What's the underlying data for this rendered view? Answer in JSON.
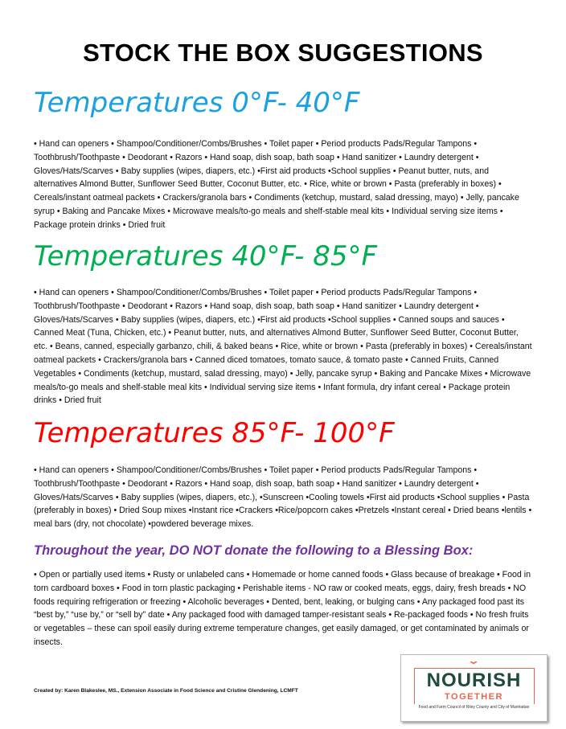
{
  "title": "STOCK THE BOX SUGGESTIONS",
  "colors": {
    "cold": "#1ba1e2",
    "mild": "#00b050",
    "hot": "#ff0000",
    "warning": "#7030a0"
  },
  "sections": [
    {
      "heading": "Temperatures 0°F- 40°F",
      "items": "• Hand can openers • Shampoo/Conditioner/Combs/Brushes • Toilet paper • Period products Pads/Regular Tampons • Toothbrush/Toothpaste • Deodorant • Razors • Hand soap, dish soap, bath soap • Hand sanitizer • Laundry detergent • Gloves/Hats/Scarves • Baby supplies (wipes, diapers, etc.) •First aid products •School supplies  • Peanut butter, nuts, and alternatives  Almond Butter, Sunflower Seed Butter, Coconut Butter, etc. • Rice, white or brown • Pasta (preferably in boxes) • Cereals/instant oatmeal packets • Crackers/granola bars • Condiments (ketchup, mustard, salad dressing, mayo) • Jelly, pancake syrup • Baking and Pancake Mixes • Microwave meals/to-go meals and shelf-stable meal kits • Individual serving size items • Package protein drinks • Dried fruit"
    },
    {
      "heading": "Temperatures 40°F- 85°F",
      "items": "• Hand can openers • Shampoo/Conditioner/Combs/Brushes • Toilet paper • Period products Pads/Regular Tampons • Toothbrush/Toothpaste • Deodorant • Razors • Hand soap, dish soap, bath soap • Hand sanitizer • Laundry detergent • Gloves/Hats/Scarves • Baby supplies (wipes, diapers, etc.) •First aid products •School supplies • Canned soups and sauces • Canned Meat (Tuna, Chicken, etc.) • Peanut butter, nuts, and alternatives  Almond Butter, Sunflower Seed Butter, Coconut Butter, etc. • Beans, canned, especially garbanzo, chili, & baked beans • Rice, white or brown • Pasta (preferably in boxes) • Cereals/instant oatmeal packets • Crackers/granola bars • Canned diced tomatoes, tomato sauce, & tomato paste • Canned Fruits, Canned Vegetables  • Condiments (ketchup, mustard, salad dressing, mayo) • Jelly, pancake syrup • Baking and Pancake Mixes • Microwave meals/to-go meals and shelf-stable meal kits • Individual serving size items • Infant formula, dry infant cereal • Package protein drinks • Dried fruit"
    },
    {
      "heading": "Temperatures 85°F- 100°F",
      "items": "• Hand can openers • Shampoo/Conditioner/Combs/Brushes • Toilet paper • Period products Pads/Regular Tampons • Toothbrush/Toothpaste • Deodorant • Razors • Hand soap, dish soap, bath soap • Hand sanitizer • Laundry detergent • Gloves/Hats/Scarves • Baby supplies (wipes, diapers, etc.), •Sunscreen •Cooling towels •First aid products •School supplies • Pasta (preferably in boxes) • Dried Soup mixes •Instant rice •Crackers •Rice/popcorn cakes •Pretzels •Instant cereal • Dried beans •lentils • meal bars (dry, not chocolate) •powdered beverage mixes."
    }
  ],
  "donot": {
    "heading": "Throughout the year, DO NOT donate the following to a Blessing Box:",
    "items": "• Open or partially used items • Rusty or unlabeled cans • Homemade or home canned foods • Glass because of breakage • Food in torn cardboard boxes • Food in torn plastic packaging • Perishable items - NO raw or cooked meats, eggs, dairy, fresh breads • NO foods requiring refrigeration or freezing • Alcoholic beverages • Dented, bent, leaking, or bulging cans • Any packaged food past its “best by,” “use by,” or “sell by” date • Any packaged food with damaged tamper-resistant seals • Re-packaged foods • No fresh fruits or vegetables – these can spoil easily during extreme temperature changes, get easily damaged, or get contaminated by animals or insects."
  },
  "credits": "Created by: Karen Blakeslee, MS., Extension Associate in Food Science and Cristine Glendening, LCMFT",
  "logo": {
    "main": "NOURISH",
    "sub": "TOGETHER",
    "tagline": "Food and Farm Council of Riley County and City of Manhattan"
  }
}
